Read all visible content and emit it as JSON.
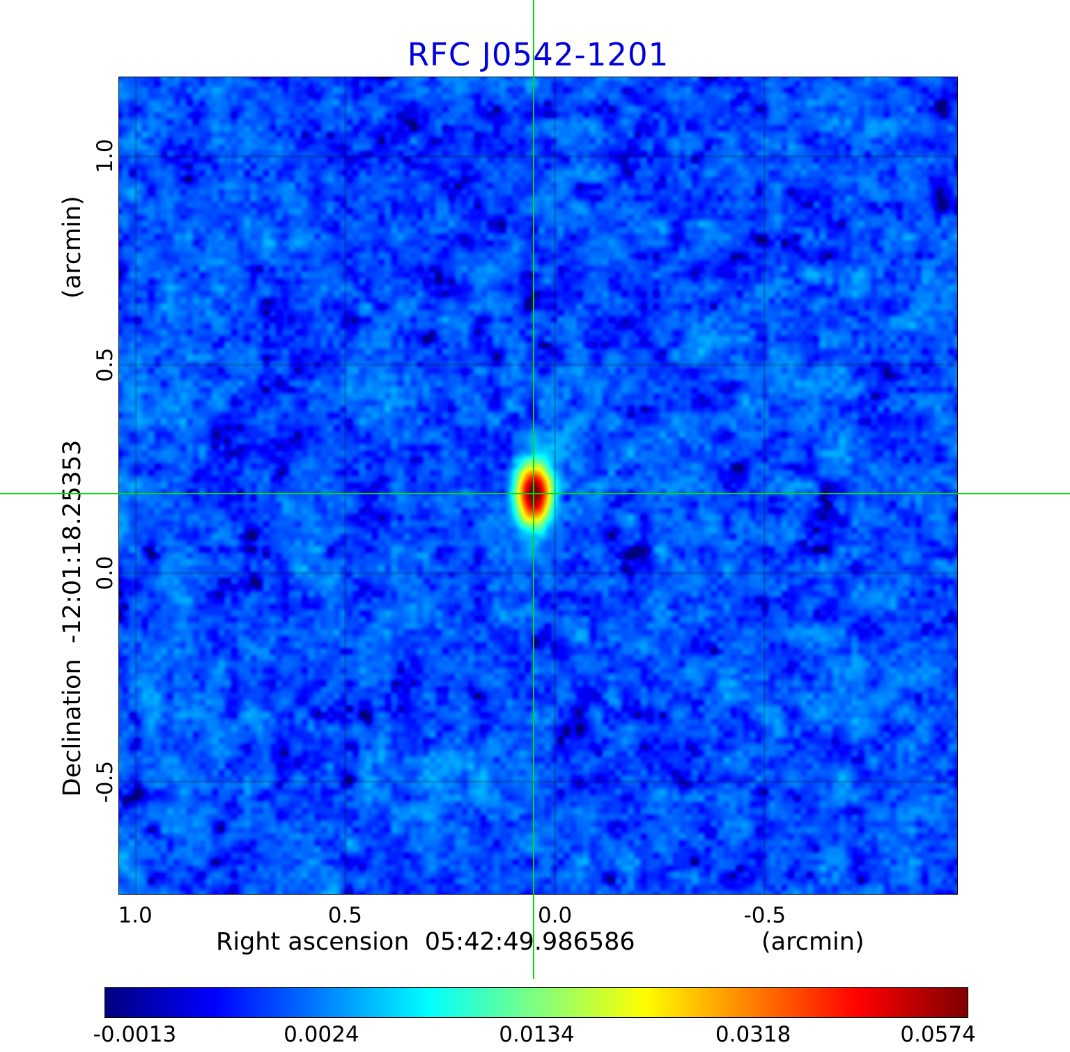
{
  "title": {
    "text": "RFC J0542-1201",
    "color": "#0000dd"
  },
  "y_axis": {
    "unit": "(arcmin)",
    "label": "Declination  -12:01:18.25353",
    "ticks": [
      "1.0",
      "0.5",
      "0.0",
      "-0.5"
    ]
  },
  "x_axis": {
    "label": "Right ascension  05:42:49.986586",
    "unit": "(arcmin)",
    "ticks": [
      "1.0",
      "0.5",
      "0.0",
      "-0.5"
    ]
  },
  "colorbar": {
    "ticks": [
      "-0.0013",
      "0.0024",
      "0.0134",
      "0.0318",
      "0.0574"
    ]
  },
  "chart_data": {
    "type": "heatmap",
    "title": "RFC J0542-1201",
    "xlabel": "Right ascension 05:42:49.986586 (arcmin)",
    "ylabel": "Declination -12:01:18.25353 (arcmin)",
    "x_range": [
      1.04,
      -0.96
    ],
    "y_range": [
      -0.77,
      1.19
    ],
    "x_gridlines": [
      1.0,
      0.5,
      0.0,
      -0.5
    ],
    "y_gridlines": [
      1.0,
      0.5,
      0.0,
      -0.5
    ],
    "grid": true,
    "colormap": "jet",
    "intensity_scale": "sqrt",
    "vmin": -0.0013,
    "vmax": 0.0574,
    "colorbar_tick_values": [
      -0.0013,
      0.0024,
      0.0134,
      0.0318,
      0.0574
    ],
    "source": {
      "x": 0.05,
      "y": 0.19,
      "peak": 0.0574,
      "sigma_x": 0.025,
      "sigma_y": 0.045
    },
    "noise": {
      "mean": 0.0012,
      "std": 0.0011,
      "seed": 1337
    },
    "crosshair": {
      "x": 0.05,
      "y": 0.19,
      "color": "#00dd00"
    }
  }
}
